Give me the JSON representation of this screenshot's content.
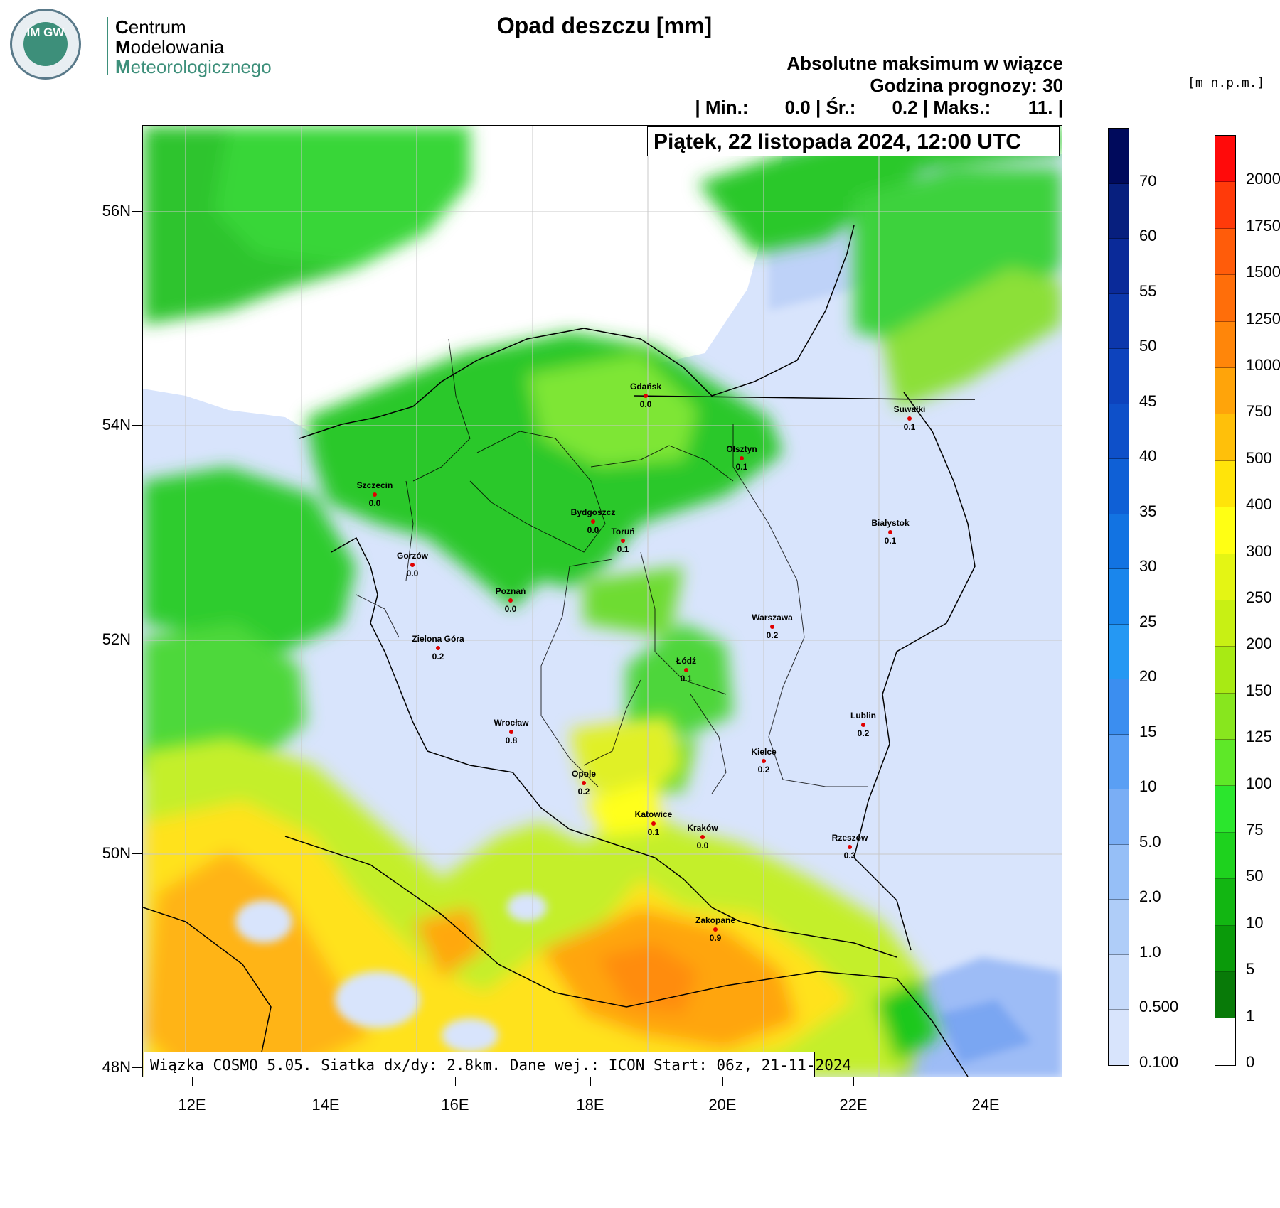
{
  "logo": {
    "badge": "IM GW",
    "line1_cap": "C",
    "line1": "entrum",
    "line2_cap": "M",
    "line2": "odelowania",
    "line3_cap": "M",
    "line3": "eteorologicznego"
  },
  "title": "Opad deszczu [mm]",
  "subtitle1": "Absolutne maksimum w wiązce",
  "subtitle2": "Godzina prognozy: 30",
  "stats": {
    "min_label": "| Min.:",
    "min": "0.0",
    "avg_label": "| Śr.:",
    "avg": "0.2",
    "max_label": "| Maks.:",
    "max": "11.",
    "end": "|"
  },
  "date": "Piątek, 22 listopada 2024, 12:00 UTC",
  "info": "Wiązka COSMO 5.05. Siatka dx/dy: 2.8km. Dane wej.: ICON Start: 06z, 21-11-2024",
  "unit": "[m n.p.m.]",
  "lat_ticks": [
    "56N",
    "54N",
    "52N",
    "50N",
    "48N"
  ],
  "lon_ticks": [
    "12E",
    "14E",
    "16E",
    "18E",
    "20E",
    "22E",
    "24E"
  ],
  "rain_scale": {
    "labels": [
      "70",
      "60",
      "55",
      "50",
      "45",
      "40",
      "35",
      "30",
      "25",
      "20",
      "15",
      "10",
      "5.0",
      "2.0",
      "1.0",
      "0.500",
      "0.100"
    ],
    "colors": [
      "#000a5c",
      "#071f7e",
      "#0a2a99",
      "#0c37ac",
      "#0d43bd",
      "#0e50c9",
      "#0f60d6",
      "#1273e2",
      "#1a86ec",
      "#2598f3",
      "#3b8ef0",
      "#5a9ff4",
      "#7aaef5",
      "#96bff7",
      "#afcdf8",
      "#c6dafa",
      "#d8e4fc"
    ]
  },
  "terrain_scale": {
    "labels": [
      "2000",
      "1750",
      "1500",
      "1250",
      "1000",
      "750",
      "500",
      "400",
      "300",
      "250",
      "200",
      "150",
      "125",
      "100",
      "75",
      "50",
      "10",
      "5",
      "1",
      "0"
    ],
    "colors": [
      "#ff0a0a",
      "#ff3a0a",
      "#ff5c0a",
      "#ff6e0a",
      "#ff860a",
      "#ffa40a",
      "#ffc00a",
      "#ffe40a",
      "#ffff14",
      "#e4f514",
      "#c8f014",
      "#a8ea14",
      "#88e61e",
      "#5ee828",
      "#2be62d",
      "#1ed21e",
      "#12b612",
      "#0a9a0a",
      "#087a08",
      "#ffffff"
    ]
  },
  "cities": [
    {
      "name": "Gdańsk",
      "value": "0.0"
    },
    {
      "name": "Suwałki",
      "value": "0.1"
    },
    {
      "name": "Olsztyn",
      "value": "0.1"
    },
    {
      "name": "Szczecin",
      "value": "0.0"
    },
    {
      "name": "Bydgoszcz",
      "value": "0.0"
    },
    {
      "name": "Toruń",
      "value": "0.1"
    },
    {
      "name": "Białystok",
      "value": "0.1"
    },
    {
      "name": "Gorzów",
      "value": "0.0"
    },
    {
      "name": "Poznań",
      "value": "0.0"
    },
    {
      "name": "Warszawa",
      "value": "0.2"
    },
    {
      "name": "Zielona Góra",
      "value": "0.2"
    },
    {
      "name": "Łódź",
      "value": "0.1"
    },
    {
      "name": "Lublin",
      "value": "0.2"
    },
    {
      "name": "Wrocław",
      "value": "0.8"
    },
    {
      "name": "Kielce",
      "value": "0.2"
    },
    {
      "name": "Opole",
      "value": "0.2"
    },
    {
      "name": "Katowice",
      "value": "0.1"
    },
    {
      "name": "Kraków",
      "value": "0.0"
    },
    {
      "name": "Rzeszów",
      "value": "0.3"
    },
    {
      "name": "Zakopane",
      "value": "0.9"
    }
  ]
}
